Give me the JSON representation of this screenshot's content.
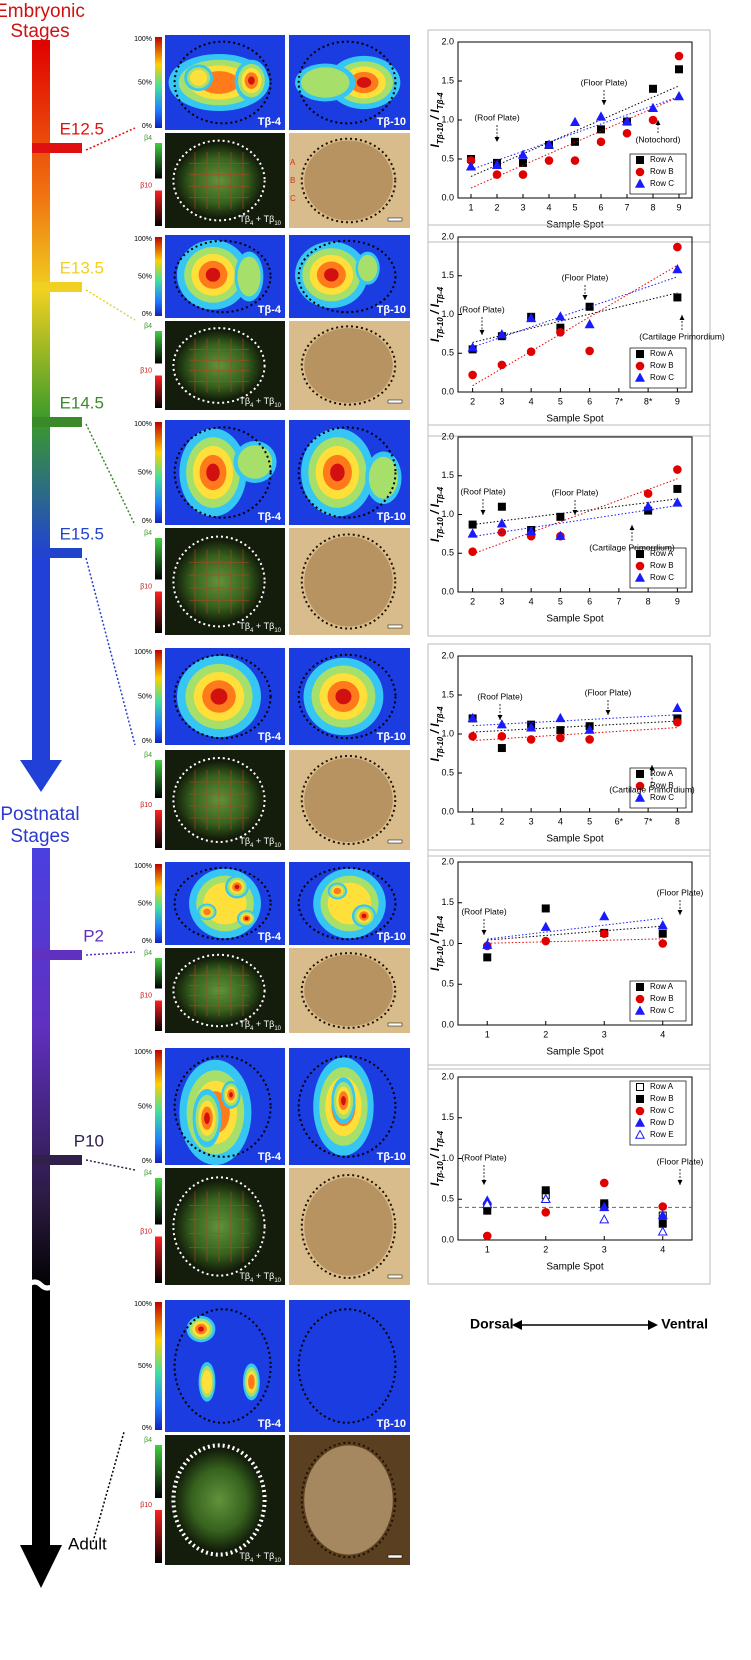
{
  "stages": {
    "embryonic": [
      "Embryonic",
      "Stages"
    ],
    "postnatal": [
      "Postnatal",
      "Stages"
    ],
    "labels": [
      "E12.5",
      "E13.5",
      "E14.5",
      "E15.5",
      "P2",
      "P10"
    ],
    "adult": "Adult"
  },
  "panel_labels": {
    "tb4": "Tβ-4",
    "tb10": "Tβ-10",
    "merge": [
      "Tβ",
      "4",
      " + Tβ",
      "10"
    ],
    "scale": [
      "100%",
      "50%",
      "0%"
    ],
    "b4": "β4",
    "b10": "β10"
  },
  "row_letters": [
    "A",
    "B",
    "C"
  ],
  "direction": {
    "dorsal": "Dorsal",
    "ventral": "Ventral"
  },
  "chart_data": [
    {
      "type": "scatter",
      "xlabel": "Sample Spot",
      "ylabel": [
        "I",
        "Tβ-10",
        " / I",
        "Tβ-4"
      ],
      "xlim": [
        0.5,
        9.5
      ],
      "ylim": [
        0,
        2
      ],
      "xticks": [
        1,
        2,
        3,
        4,
        5,
        6,
        7,
        8,
        9
      ],
      "yticks": [
        {
          "value": 0,
          "label": "0.0"
        },
        0.5,
        {
          "value": 1,
          "label": "1.0"
        },
        1.5,
        {
          "value": 2,
          "label": "2.0"
        }
      ],
      "legend": "lower right",
      "trend_lines": true,
      "x": [
        1,
        2,
        3,
        4,
        5,
        6,
        7,
        8,
        9
      ],
      "series": [
        {
          "name": "Row A",
          "color": "#000000",
          "marker": "square",
          "filled": true,
          "values": [
            0.5,
            0.45,
            0.45,
            0.68,
            0.72,
            0.88,
            0.98,
            1.4,
            1.65
          ]
        },
        {
          "name": "Row B",
          "color": "#e00000",
          "marker": "circle",
          "filled": true,
          "values": [
            0.48,
            0.3,
            0.3,
            0.48,
            0.48,
            0.72,
            0.83,
            1.0,
            1.82
          ]
        },
        {
          "name": "Row C",
          "color": "#1a1aff",
          "marker": "triangle",
          "filled": true,
          "values": [
            0.4,
            0.42,
            0.55,
            0.68,
            0.97,
            1.04,
            0.98,
            1.15,
            1.3
          ]
        }
      ],
      "annotations": [
        "(Roof Plate)",
        "(Floor Plate)",
        "(Notochord)"
      ]
    },
    {
      "type": "scatter",
      "xlabel": "Sample Spot",
      "ylabel": [
        "I",
        "Tβ-10",
        " / I",
        "Tβ-4"
      ],
      "xlim": [
        1.5,
        9.5
      ],
      "ylim": [
        0,
        2
      ],
      "xticks": [
        2,
        3,
        4,
        5,
        6,
        {
          "value": 7,
          "label": "7*"
        },
        {
          "value": 8,
          "label": "8*"
        },
        9
      ],
      "yticks": [
        {
          "value": 0,
          "label": "0.0"
        },
        0.5,
        {
          "value": 1,
          "label": "1.0"
        },
        1.5,
        {
          "value": 2,
          "label": "2.0"
        }
      ],
      "legend": "lower right",
      "trend_lines": true,
      "x": [
        2,
        3,
        4,
        5,
        6,
        9
      ],
      "series": [
        {
          "name": "Row A",
          "color": "#000000",
          "marker": "square",
          "filled": true,
          "values": [
            0.55,
            0.72,
            0.97,
            0.83,
            1.1,
            1.22
          ]
        },
        {
          "name": "Row B",
          "color": "#e00000",
          "marker": "circle",
          "filled": true,
          "values": [
            0.22,
            0.35,
            0.52,
            0.77,
            0.53,
            1.87
          ]
        },
        {
          "name": "Row C",
          "color": "#1a1aff",
          "marker": "triangle",
          "filled": true,
          "values": [
            0.57,
            0.74,
            0.95,
            0.97,
            0.87,
            1.58
          ]
        }
      ],
      "annotations": [
        "(Roof Plate)",
        "(Floor Plate)",
        "(Cartilage Primordium)"
      ]
    },
    {
      "type": "scatter",
      "xlabel": "Sample Spot",
      "ylabel": [
        "I",
        "Tβ-10",
        " / I",
        "Tβ-4"
      ],
      "xlim": [
        1.5,
        9.5
      ],
      "ylim": [
        0,
        2
      ],
      "xticks": [
        2,
        3,
        4,
        5,
        6,
        7,
        8,
        9
      ],
      "yticks": [
        {
          "value": 0,
          "label": "0.0"
        },
        0.5,
        {
          "value": 1,
          "label": "1.0"
        },
        1.5,
        {
          "value": 2,
          "label": "2.0"
        }
      ],
      "legend": "lower right",
      "trend_lines": true,
      "x": [
        2,
        3,
        4,
        5,
        8,
        9
      ],
      "series": [
        {
          "name": "Row A",
          "color": "#000000",
          "marker": "square",
          "filled": true,
          "values": [
            0.87,
            1.1,
            0.8,
            0.97,
            1.05,
            1.33
          ]
        },
        {
          "name": "Row B",
          "color": "#e00000",
          "marker": "circle",
          "filled": true,
          "values": [
            0.52,
            0.77,
            0.72,
            0.72,
            1.27,
            1.58
          ]
        },
        {
          "name": "Row C",
          "color": "#1a1aff",
          "marker": "triangle",
          "filled": true,
          "values": [
            0.75,
            0.88,
            0.78,
            0.72,
            1.1,
            1.15
          ]
        }
      ],
      "annotations": [
        "(Roof Plate)",
        "(Floor Plate)",
        "(Cartilage Primordium)"
      ]
    },
    {
      "type": "scatter",
      "xlabel": "Sample Spot",
      "ylabel": [
        "I",
        "Tβ-10",
        " / I",
        "Tβ-4"
      ],
      "xlim": [
        0.5,
        8.5
      ],
      "ylim": [
        0,
        2
      ],
      "xticks": [
        1,
        2,
        3,
        4,
        5,
        {
          "value": 6,
          "label": "6*"
        },
        {
          "value": 7,
          "label": "7*"
        },
        8
      ],
      "yticks": [
        {
          "value": 0,
          "label": "0.0"
        },
        0.5,
        {
          "value": 1,
          "label": "1.0"
        },
        1.5,
        {
          "value": 2,
          "label": "2.0"
        }
      ],
      "legend": "lower right",
      "trend_lines": true,
      "x": [
        1,
        2,
        3,
        4,
        5,
        8
      ],
      "series": [
        {
          "name": "Row A",
          "color": "#000000",
          "marker": "square",
          "filled": true,
          "values": [
            1.2,
            0.82,
            1.12,
            1.05,
            1.1,
            1.2
          ]
        },
        {
          "name": "Row B",
          "color": "#e00000",
          "marker": "circle",
          "filled": true,
          "values": [
            0.97,
            0.97,
            0.93,
            0.95,
            0.93,
            1.15
          ]
        },
        {
          "name": "Row C",
          "color": "#1a1aff",
          "marker": "triangle",
          "filled": true,
          "values": [
            1.2,
            1.12,
            1.08,
            1.2,
            1.05,
            1.33
          ]
        }
      ],
      "annotations": [
        "(Roof Plate)",
        "(Floor Plate)",
        "(Cartilage Primordium)"
      ]
    },
    {
      "type": "scatter",
      "xlabel": "Sample Spot",
      "ylabel": [
        "I",
        "Tβ-10",
        " / I",
        "Tβ-4"
      ],
      "xlim": [
        0.5,
        4.5
      ],
      "ylim": [
        0,
        2
      ],
      "xticks": [
        1,
        2,
        3,
        4
      ],
      "yticks": [
        {
          "value": 0,
          "label": "0.0"
        },
        0.5,
        {
          "value": 1,
          "label": "1.0"
        },
        1.5,
        {
          "value": 2,
          "label": "2.0"
        }
      ],
      "legend": "lower right",
      "trend_lines": true,
      "x": [
        1,
        2,
        3,
        4
      ],
      "series": [
        {
          "name": "Row A",
          "color": "#000000",
          "marker": "square",
          "filled": true,
          "values": [
            0.83,
            1.43,
            1.13,
            1.12
          ]
        },
        {
          "name": "Row B",
          "color": "#e00000",
          "marker": "circle",
          "filled": true,
          "values": [
            0.97,
            1.03,
            1.12,
            1.0
          ]
        },
        {
          "name": "Row C",
          "color": "#1a1aff",
          "marker": "triangle",
          "filled": true,
          "values": [
            0.98,
            1.2,
            1.33,
            1.22
          ]
        }
      ],
      "annotations": [
        "(Roof Plate)",
        "(Floor Plate)"
      ]
    },
    {
      "type": "scatter",
      "xlabel": "Sample Spot",
      "ylabel": [
        "I",
        "Tβ-10",
        " / I",
        "Tβ-4"
      ],
      "xlim": [
        0.5,
        4.5
      ],
      "ylim": [
        0,
        2
      ],
      "xticks": [
        1,
        2,
        3,
        4
      ],
      "yticks": [
        {
          "value": 0,
          "label": "0.0"
        },
        0.5,
        {
          "value": 1,
          "label": "1.0"
        },
        1.5,
        {
          "value": 2,
          "label": "2.0"
        }
      ],
      "legend": "upper right",
      "trend_lines": false,
      "hline": 0.4,
      "x": [
        1,
        2,
        3,
        4
      ],
      "series": [
        {
          "name": "Row A",
          "color": "#000000",
          "marker": "square",
          "filled": false,
          "values": [
            0.42,
            0.55,
            0.43,
            0.3
          ]
        },
        {
          "name": "Row B",
          "color": "#000000",
          "marker": "square",
          "filled": true,
          "values": [
            0.36,
            0.61,
            0.45,
            0.2
          ]
        },
        {
          "name": "Row C",
          "color": "#e00000",
          "marker": "circle",
          "filled": true,
          "values": [
            0.05,
            0.34,
            0.7,
            0.41
          ]
        },
        {
          "name": "Row D",
          "color": "#1a1aff",
          "marker": "triangle",
          "filled": true,
          "values": [
            0.48,
            0.5,
            0.4,
            0.3
          ]
        },
        {
          "name": "Row E",
          "color": "#1a1aff",
          "marker": "triangle",
          "filled": false,
          "values": [
            0.44,
            0.5,
            0.25,
            0.1
          ]
        }
      ],
      "annotations": [
        "(Roof Plate)",
        "(Floor Plate)"
      ]
    }
  ]
}
